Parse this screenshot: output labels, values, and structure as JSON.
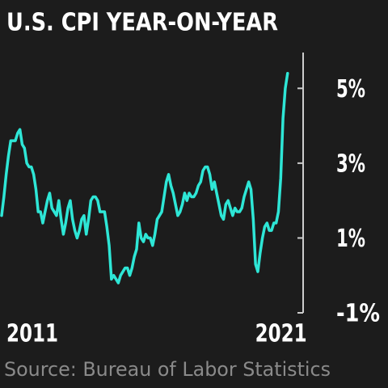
{
  "chart_data": {
    "type": "line",
    "title": "U.S. CPI YEAR-ON-YEAR",
    "source": "Source: Bureau of Labor Statistics",
    "x": [
      2011,
      2011.083,
      2011.167,
      2011.25,
      2011.333,
      2011.417,
      2011.5,
      2011.583,
      2011.667,
      2011.75,
      2011.833,
      2011.917,
      2012,
      2012.083,
      2012.167,
      2012.25,
      2012.333,
      2012.417,
      2012.5,
      2012.583,
      2012.667,
      2012.75,
      2012.833,
      2012.917,
      2013,
      2013.083,
      2013.167,
      2013.25,
      2013.333,
      2013.417,
      2013.5,
      2013.583,
      2013.667,
      2013.75,
      2013.833,
      2013.917,
      2014,
      2014.083,
      2014.167,
      2014.25,
      2014.333,
      2014.417,
      2014.5,
      2014.583,
      2014.667,
      2014.75,
      2014.833,
      2014.917,
      2015,
      2015.083,
      2015.167,
      2015.25,
      2015.333,
      2015.417,
      2015.5,
      2015.583,
      2015.667,
      2015.75,
      2015.833,
      2015.917,
      2016,
      2016.083,
      2016.167,
      2016.25,
      2016.333,
      2016.417,
      2016.5,
      2016.583,
      2016.667,
      2016.75,
      2016.833,
      2016.917,
      2017,
      2017.083,
      2017.167,
      2017.25,
      2017.333,
      2017.417,
      2017.5,
      2017.583,
      2017.667,
      2017.75,
      2017.833,
      2017.917,
      2018,
      2018.083,
      2018.167,
      2018.25,
      2018.333,
      2018.417,
      2018.5,
      2018.583,
      2018.667,
      2018.75,
      2018.833,
      2018.917,
      2019,
      2019.083,
      2019.167,
      2019.25,
      2019.333,
      2019.417,
      2019.5,
      2019.583,
      2019.667,
      2019.75,
      2019.833,
      2019.917,
      2020,
      2020.083,
      2020.167,
      2020.25,
      2020.333,
      2020.417,
      2020.5,
      2020.583,
      2020.667,
      2020.75,
      2020.833,
      2020.917,
      2021,
      2021.083,
      2021.167,
      2021.25,
      2021.333,
      2021.417
    ],
    "series": [
      {
        "color": "#2ee6d6",
        "values": [
          1.6,
          2.1,
          2.7,
          3.2,
          3.6,
          3.6,
          3.6,
          3.8,
          3.9,
          3.5,
          3.4,
          3.0,
          2.9,
          2.9,
          2.7,
          2.3,
          1.7,
          1.7,
          1.4,
          1.7,
          2.0,
          2.2,
          1.8,
          1.7,
          1.6,
          2.0,
          1.5,
          1.1,
          1.4,
          1.8,
          2.0,
          1.5,
          1.2,
          1.0,
          1.2,
          1.5,
          1.6,
          1.1,
          1.5,
          2.0,
          2.1,
          2.1,
          2.0,
          1.7,
          1.7,
          1.7,
          1.3,
          0.8,
          -0.1,
          0.0,
          -0.1,
          -0.2,
          0.0,
          0.1,
          0.2,
          0.2,
          0.0,
          0.2,
          0.5,
          0.7,
          1.4,
          1.0,
          0.9,
          1.1,
          1.0,
          1.0,
          0.8,
          1.1,
          1.5,
          1.6,
          1.7,
          2.1,
          2.5,
          2.7,
          2.4,
          2.2,
          1.9,
          1.6,
          1.7,
          1.9,
          2.2,
          2.0,
          2.2,
          2.1,
          2.1,
          2.2,
          2.4,
          2.5,
          2.8,
          2.9,
          2.9,
          2.7,
          2.3,
          2.5,
          2.2,
          1.9,
          1.6,
          1.5,
          1.9,
          2.0,
          1.8,
          1.6,
          1.8,
          1.7,
          1.7,
          1.8,
          2.1,
          2.3,
          2.5,
          2.3,
          1.5,
          0.3,
          0.1,
          0.6,
          1.0,
          1.3,
          1.4,
          1.2,
          1.2,
          1.4,
          1.4,
          1.7,
          2.6,
          4.2,
          5.0,
          5.4
        ]
      }
    ],
    "xlim": [
      2011,
      2021.6
    ],
    "xticks": [
      2011,
      2021
    ],
    "ylim": [
      -1,
      6
    ],
    "yticks": [
      {
        "value": -1,
        "label": "-1%"
      },
      {
        "value": 1,
        "label": "1%"
      },
      {
        "value": 3,
        "label": "3%"
      },
      {
        "value": 5,
        "label": "5%"
      }
    ]
  }
}
